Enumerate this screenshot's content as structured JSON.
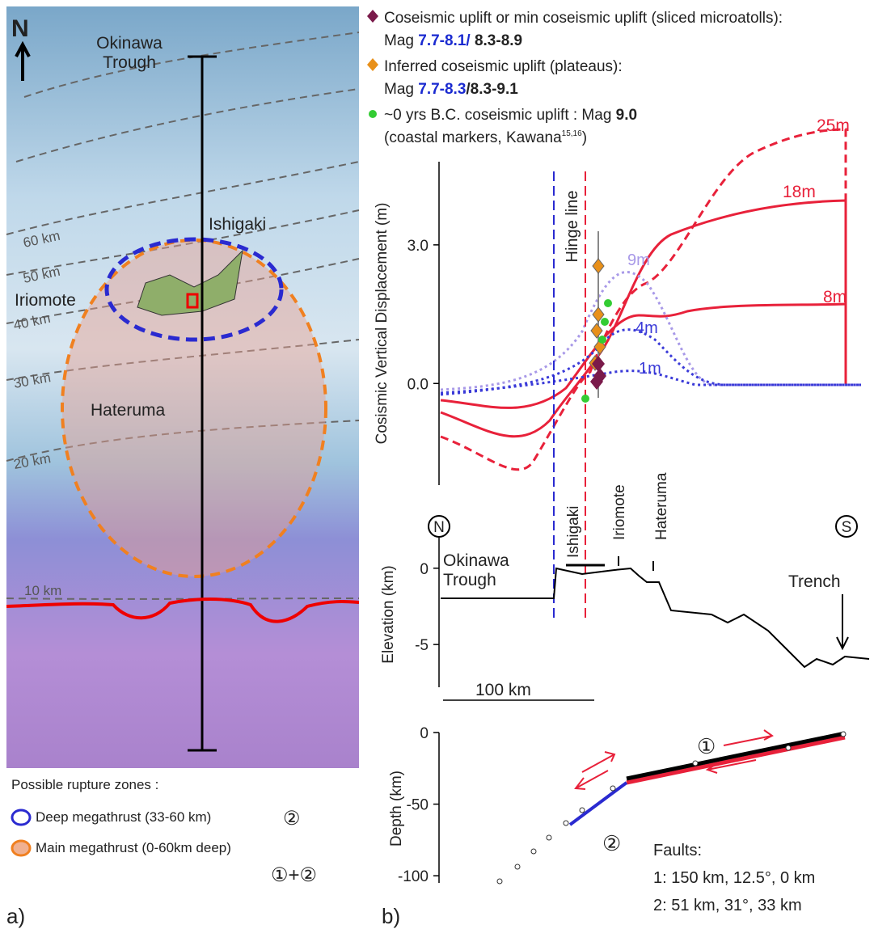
{
  "panel_a": {
    "north": "N",
    "okinawa_trough": [
      "Okinawa",
      "Trough"
    ],
    "islands": [
      "Ishigaki",
      "Iriomote",
      "Hateruma"
    ],
    "contours": [
      "60 km",
      "50 km",
      "40 km",
      "30 km",
      "20 km",
      "10 km"
    ],
    "legend_title": "Possible rupture zones :",
    "legend": [
      {
        "text": "Deep megathrust (33-60 km)",
        "fault": "②"
      },
      {
        "text": "Main megathrust (0-60km deep)",
        "fault": "①+②"
      }
    ],
    "label": "a)"
  },
  "panel_b": {
    "legend": [
      {
        "line1": "Coseismic uplift or min coseismic uplift (sliced microatolls):",
        "mag": "Mag ",
        "range_low": "7.7-8.1/",
        "range_high": " 8.3-8.9"
      },
      {
        "line1": "Inferred coseismic uplift (plateaus):",
        "mag": "Mag ",
        "range_low": "7.7-8.3",
        "range_high": "/8.3-9.1"
      },
      {
        "line1": "~0 yrs B.C. coseismic uplift : Mag ",
        "value": "9.0",
        "line2": "(coastal markers, Kawana",
        "ref": "15,16",
        "close": ")"
      }
    ],
    "displacement": {
      "ylabel": "Cosismic Vertical Displacement (m)",
      "ylim": [
        -2.2,
        4.8
      ],
      "yticks": [
        {
          "value": 3,
          "label": "3.0"
        },
        {
          "value": 0,
          "label": "0.0"
        }
      ],
      "curve_labels": [
        "25m",
        "18m",
        "8m",
        "9m",
        "4m",
        "1m"
      ],
      "hinge": "Hinge line",
      "islands": [
        "Ishigaki",
        "Iriomote",
        "Hateruma"
      ]
    },
    "elevation": {
      "north": "N",
      "south": "S",
      "ylabel": "Elevation (km)",
      "ylim": [
        -7.8,
        2
      ],
      "yticks": [
        0,
        -5
      ],
      "trough": [
        "Okinawa",
        "Trough"
      ],
      "trench": "Trench",
      "scale": "100 km"
    },
    "depth": {
      "ylabel": "Depth (km)",
      "ylim": [
        -105,
        0
      ],
      "yticks": [
        0,
        -50,
        -100
      ],
      "fault1": "①",
      "fault2": "②",
      "faults_title": "Faults:",
      "faults": [
        "1: 150 km, 12.5°, 0 km",
        "2: 51 km, 31°, 33 km"
      ]
    },
    "label": "b)"
  }
}
